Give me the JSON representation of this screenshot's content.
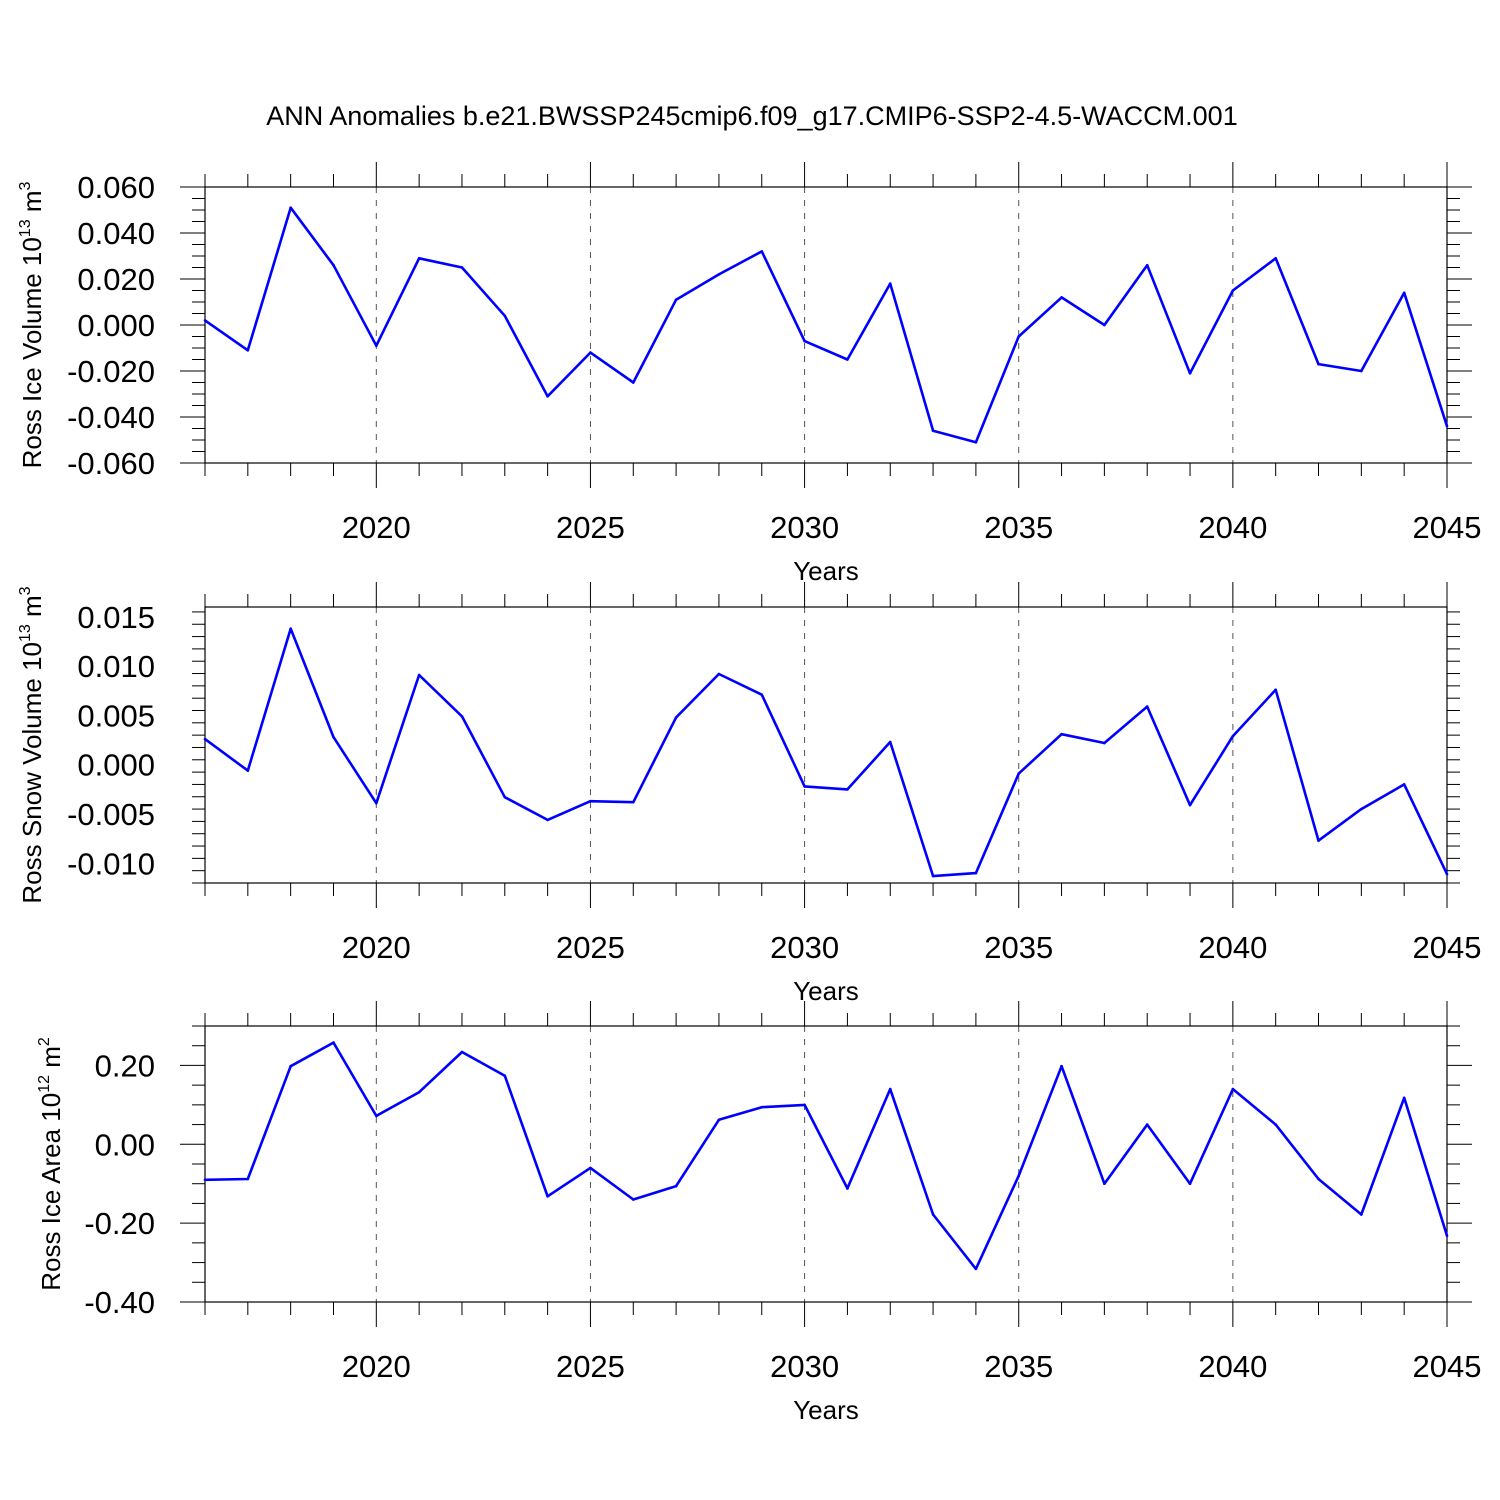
{
  "title": "ANN Anomalies b.e21.BWSSP245cmip6.f09_g17.CMIP6-SSP2-4.5-WACCM.001",
  "line_color": "#0000ff",
  "chart_data": [
    {
      "type": "line",
      "id": "ice-volume",
      "ylabel": "Ross Ice Volume",
      "ylabel_unit_base": "10",
      "ylabel_unit_exp": "13",
      "ylabel_unit": "m",
      "ylabel_unit_power": "3",
      "xlabel": "Years",
      "xlim": [
        2016,
        2045
      ],
      "ylim": [
        -0.06,
        0.06
      ],
      "xticks": [
        2020,
        2025,
        2030,
        2035,
        2040,
        2045
      ],
      "xtick_labels": [
        "2020",
        "2025",
        "2030",
        "2035",
        "2040",
        "2045"
      ],
      "yticks": [
        -0.06,
        -0.04,
        -0.02,
        0.0,
        0.02,
        0.04,
        0.06
      ],
      "ytick_labels": [
        "-0.060",
        "-0.040",
        "-0.020",
        "0.000",
        "0.020",
        "0.040",
        "0.060"
      ],
      "x": [
        2016,
        2017,
        2018,
        2019,
        2020,
        2021,
        2022,
        2023,
        2024,
        2025,
        2026,
        2027,
        2028,
        2029,
        2030,
        2031,
        2032,
        2033,
        2034,
        2035,
        2036,
        2037,
        2038,
        2039,
        2040,
        2041,
        2042,
        2043,
        2044,
        2045
      ],
      "values": [
        0.002,
        -0.011,
        0.051,
        0.026,
        -0.009,
        0.029,
        0.025,
        0.004,
        -0.031,
        -0.012,
        -0.025,
        0.011,
        0.022,
        0.032,
        -0.007,
        -0.015,
        0.018,
        -0.046,
        -0.051,
        -0.005,
        0.012,
        0.0,
        0.026,
        -0.021,
        0.015,
        0.029,
        -0.017,
        -0.02,
        0.014,
        -0.044
      ]
    },
    {
      "type": "line",
      "id": "snow-volume",
      "ylabel": "Ross Snow Volume",
      "ylabel_unit_base": "10",
      "ylabel_unit_exp": "13",
      "ylabel_unit": "m",
      "ylabel_unit_power": "3",
      "xlabel": "Years",
      "xlim": [
        2016,
        2045
      ],
      "ylim": [
        -0.012,
        0.016
      ],
      "xticks": [
        2020,
        2025,
        2030,
        2035,
        2040,
        2045
      ],
      "xtick_labels": [
        "2020",
        "2025",
        "2030",
        "2035",
        "2040",
        "2045"
      ],
      "yticks": [
        -0.01,
        -0.005,
        0.0,
        0.005,
        0.01,
        0.015
      ],
      "ytick_labels": [
        "-0.010",
        "-0.005",
        "0.000",
        "0.005",
        "0.010",
        "0.015"
      ],
      "x": [
        2016,
        2017,
        2018,
        2019,
        2020,
        2021,
        2022,
        2023,
        2024,
        2025,
        2026,
        2027,
        2028,
        2029,
        2030,
        2031,
        2032,
        2033,
        2034,
        2035,
        2036,
        2037,
        2038,
        2039,
        2040,
        2041,
        2042,
        2043,
        2044,
        2045
      ],
      "values": [
        0.0026,
        -0.0006,
        0.0138,
        0.0028,
        -0.0039,
        0.0091,
        0.0049,
        -0.0033,
        -0.0056,
        -0.0037,
        -0.0038,
        0.0048,
        0.0092,
        0.0071,
        -0.0022,
        -0.0025,
        0.0023,
        -0.0113,
        -0.011,
        -0.0009,
        0.0031,
        0.0022,
        0.0059,
        -0.0041,
        0.0029,
        0.0076,
        -0.0077,
        -0.0045,
        -0.002,
        -0.0111
      ]
    },
    {
      "type": "line",
      "id": "ice-area",
      "ylabel": "Ross Ice Area",
      "ylabel_unit_base": "10",
      "ylabel_unit_exp": "12",
      "ylabel_unit": "m",
      "ylabel_unit_power": "2",
      "xlabel": "Years",
      "xlim": [
        2016,
        2045
      ],
      "ylim": [
        -0.4,
        0.3
      ],
      "xticks": [
        2020,
        2025,
        2030,
        2035,
        2040,
        2045
      ],
      "xtick_labels": [
        "2020",
        "2025",
        "2030",
        "2035",
        "2040",
        "2045"
      ],
      "yticks": [
        -0.4,
        -0.2,
        0.0,
        0.2
      ],
      "ytick_labels": [
        "-0.40",
        "-0.20",
        "0.00",
        "0.20"
      ],
      "x": [
        2016,
        2017,
        2018,
        2019,
        2020,
        2021,
        2022,
        2023,
        2024,
        2025,
        2026,
        2027,
        2028,
        2029,
        2030,
        2031,
        2032,
        2033,
        2034,
        2035,
        2036,
        2037,
        2038,
        2039,
        2040,
        2041,
        2042,
        2043,
        2044,
        2045
      ],
      "values": [
        -0.09,
        -0.088,
        0.198,
        0.258,
        0.072,
        0.132,
        0.234,
        0.174,
        -0.132,
        -0.06,
        -0.14,
        -0.106,
        0.062,
        0.094,
        0.1,
        -0.112,
        0.14,
        -0.178,
        -0.316,
        -0.08,
        0.198,
        -0.1,
        0.05,
        -0.1,
        0.14,
        0.05,
        -0.088,
        -0.178,
        0.118,
        -0.232
      ]
    }
  ]
}
